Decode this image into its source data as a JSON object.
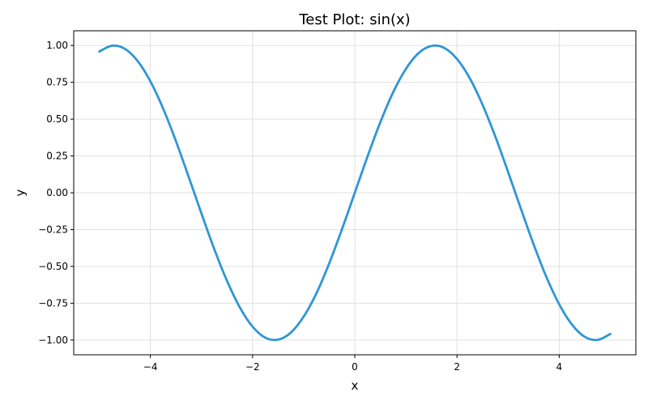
{
  "chart_data": {
    "type": "line",
    "title": "Test Plot: sin(x)",
    "xlabel": "x",
    "ylabel": "y",
    "xlim": [
      -5.5,
      5.5
    ],
    "ylim": [
      -1.1,
      1.1
    ],
    "grid": true,
    "x_ticks": [
      -4,
      -2,
      0,
      2,
      4
    ],
    "x_tick_labels": [
      "−4",
      "−2",
      "0",
      "2",
      "4"
    ],
    "y_ticks": [
      1.0,
      0.75,
      0.5,
      0.25,
      0.0,
      -0.25,
      -0.5,
      -0.75,
      -1.0
    ],
    "y_tick_labels": [
      "1.00",
      "0.75",
      "0.50",
      "0.25",
      "0.00",
      "−0.25",
      "−0.50",
      "−0.75",
      "−1.00"
    ],
    "series": [
      {
        "color": "#2e96d6",
        "x": [
          -5.0,
          -4.75,
          -4.5,
          -4.25,
          -4.0,
          -3.75,
          -3.5,
          -3.25,
          -3.0,
          -2.75,
          -2.5,
          -2.25,
          -2.0,
          -1.75,
          -1.5,
          -1.25,
          -1.0,
          -0.75,
          -0.5,
          -0.25,
          0.0,
          0.25,
          0.5,
          0.75,
          1.0,
          1.25,
          1.5,
          1.75,
          2.0,
          2.25,
          2.5,
          2.75,
          3.0,
          3.25,
          3.5,
          3.75,
          4.0,
          4.25,
          4.5,
          4.75,
          5.0
        ],
        "y": [
          0.959,
          0.999,
          0.978,
          0.895,
          0.757,
          0.572,
          0.351,
          0.108,
          -0.141,
          -0.382,
          -0.598,
          -0.778,
          -0.909,
          -0.984,
          -0.997,
          -0.949,
          -0.841,
          -0.682,
          -0.479,
          -0.247,
          0.0,
          0.247,
          0.479,
          0.682,
          0.841,
          0.949,
          0.997,
          0.984,
          0.909,
          0.778,
          0.598,
          0.382,
          0.141,
          -0.108,
          -0.351,
          -0.572,
          -0.757,
          -0.895,
          -0.978,
          -0.999,
          -0.959
        ]
      }
    ]
  }
}
